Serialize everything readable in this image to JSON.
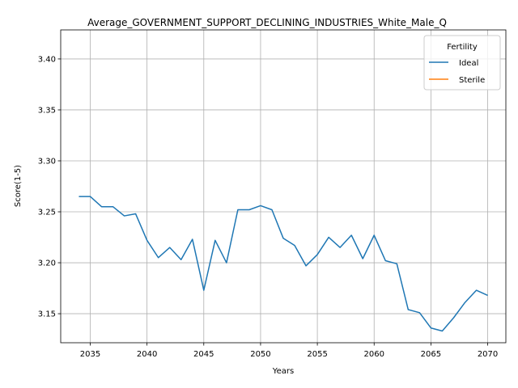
{
  "chart_data": {
    "type": "line",
    "title": "Average_GOVERNMENT_SUPPORT_DECLINING_INDUSTRIES_White_Male_Q",
    "xlabel": "Years",
    "ylabel": "Score(1-5)",
    "xlim": [
      2032.4,
      2071.6
    ],
    "ylim": [
      3.1215,
      3.4285
    ],
    "xticks": [
      2035,
      2040,
      2045,
      2050,
      2055,
      2060,
      2065,
      2070
    ],
    "yticks": [
      "3.15",
      "3.20",
      "3.25",
      "3.30",
      "3.35",
      "3.40"
    ],
    "grid": true,
    "legend": {
      "title": "Fertility",
      "placement": "top-right",
      "entries": [
        "Ideal",
        "Sterile"
      ]
    },
    "series": [
      {
        "name": "Ideal",
        "color": "#1f77b4",
        "x": [
          2034,
          2035,
          2036,
          2037,
          2038,
          2039,
          2040,
          2041,
          2042,
          2043,
          2044,
          2045,
          2046,
          2047,
          2048,
          2049,
          2050,
          2051,
          2052,
          2053,
          2054,
          2055,
          2056,
          2057,
          2058,
          2059,
          2060,
          2061,
          2062,
          2063,
          2064,
          2065,
          2066,
          2067,
          2068,
          2069,
          2070
        ],
        "y": [
          3.265,
          3.265,
          3.255,
          3.255,
          3.246,
          3.248,
          3.222,
          3.205,
          3.215,
          3.203,
          3.223,
          3.173,
          3.222,
          3.2,
          3.252,
          3.252,
          3.256,
          3.252,
          3.224,
          3.217,
          3.197,
          3.208,
          3.225,
          3.215,
          3.227,
          3.204,
          3.227,
          3.202,
          3.199,
          3.154,
          3.151,
          3.136,
          3.133,
          3.146,
          3.161,
          3.173,
          3.168
        ]
      },
      {
        "name": "Sterile",
        "color": "#ff7f0e",
        "x": [],
        "y": []
      }
    ]
  }
}
